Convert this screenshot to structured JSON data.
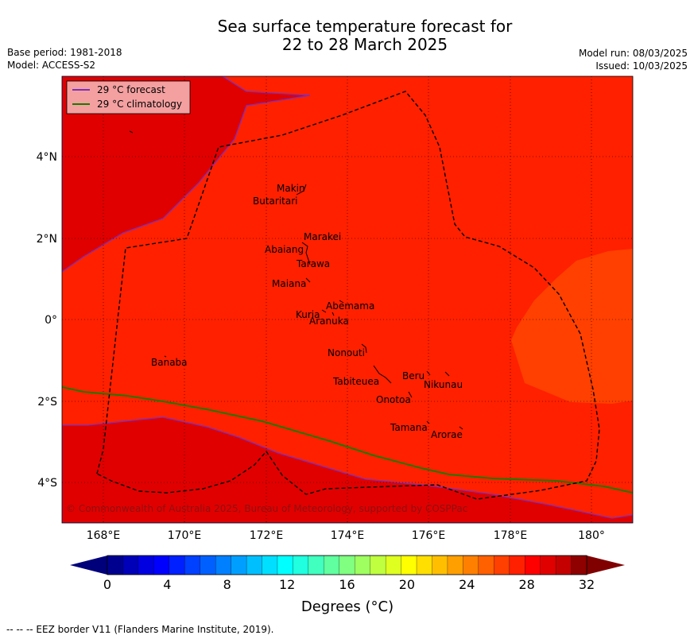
{
  "header": {
    "title_line1": "Sea surface temperature forecast for",
    "title_line2": "22 to 28 March 2025",
    "base_period": "Base period: 1981-2018",
    "model": "Model: ACCESS-S2",
    "model_run": "Model run: 08/03/2025",
    "issued": "Issued: 10/03/2025"
  },
  "legend": {
    "forecast": "29 °C  forecast",
    "climatology": "29 °C  climatology",
    "forecast_color": "#7b2fbe",
    "climatology_color": "#1a7a00"
  },
  "map": {
    "lon_ticks": [
      "168°E",
      "170°E",
      "172°E",
      "174°E",
      "176°E",
      "178°E",
      "180°"
    ],
    "lat_ticks": [
      "4°N",
      "2°N",
      "0°",
      "2°S",
      "4°S"
    ],
    "islands": [
      "Makin",
      "Butaritari",
      "Marakei",
      "Abaiang",
      "Tarawa",
      "Maiana",
      "Abemama",
      "Kuria",
      "Aranuka",
      "Nonouti",
      "Banaba",
      "Beru",
      "Nikunau",
      "Tabiteuea",
      "Onotoa",
      "Tamana",
      "Arorae"
    ],
    "copyright": "© Commonwealth of Australia 2025, Bureau of Meteorology, supported by COSPPac"
  },
  "colorbar": {
    "tick_labels": [
      "0",
      "4",
      "8",
      "12",
      "16",
      "20",
      "24",
      "28",
      "32"
    ],
    "label": "Degrees (°C)",
    "colors": [
      "#00008f",
      "#0000b8",
      "#0000e0",
      "#0000ff",
      "#0020ff",
      "#0040ff",
      "#0060ff",
      "#0080ff",
      "#009fff",
      "#00bfff",
      "#00dfff",
      "#00ffff",
      "#20ffdf",
      "#40ffbf",
      "#60ff9f",
      "#80ff80",
      "#9fff60",
      "#bfff40",
      "#dfff20",
      "#ffff00",
      "#ffdf00",
      "#ffbf00",
      "#ff9f00",
      "#ff8000",
      "#ff6000",
      "#ff4000",
      "#ff2000",
      "#ff0000",
      "#e00000",
      "#c40000",
      "#8f0000"
    ],
    "under_color": "#00007a",
    "over_color": "#800000"
  },
  "footer": {
    "eez_text": "--  --  -- EEZ border V11 (Flanders Marine Institute, 2019)."
  }
}
